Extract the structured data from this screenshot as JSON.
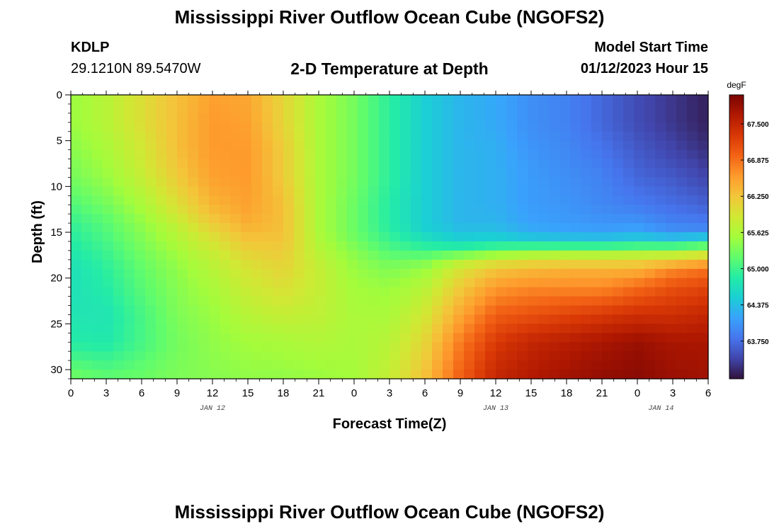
{
  "header": {
    "title": "Mississippi River Outflow Ocean Cube (NGOFS2)",
    "station_id": "KDLP",
    "coordinates": "29.1210N  89.5470W",
    "subtitle": "2-D Temperature at Depth",
    "model_start_label": "Model Start Time",
    "model_start_time": "01/12/2023 Hour 15"
  },
  "footer": {
    "title": "Mississippi River Outflow Ocean Cube (NGOFS2)"
  },
  "chart_data": {
    "type": "heatmap",
    "xlabel": "Forecast Time(Z)",
    "ylabel": "Depth (ft)",
    "x_tick_labels": [
      "0",
      "3",
      "6",
      "9",
      "12",
      "15",
      "18",
      "21",
      "0",
      "3",
      "6",
      "9",
      "12",
      "15",
      "18",
      "21",
      "0",
      "3",
      "6"
    ],
    "x_range_hours": [
      0,
      54
    ],
    "date_labels": [
      {
        "label": "JAN 12",
        "hour": 12
      },
      {
        "label": "JAN 13",
        "hour": 36
      },
      {
        "label": "JAN 14",
        "hour": 50
      }
    ],
    "y_ticks": [
      0,
      5,
      10,
      15,
      20,
      25,
      30
    ],
    "y_range": [
      0,
      31
    ],
    "y_inverted": true,
    "colorbar": {
      "unit": "degF",
      "range": [
        63.1,
        68.0
      ],
      "ticks": [
        "67.500",
        "66.875",
        "66.250",
        "65.625",
        "65.000",
        "64.375",
        "63.750"
      ],
      "tick_values": [
        67.5,
        66.875,
        66.25,
        65.625,
        65.0,
        64.375,
        63.75
      ],
      "colors": [
        "#30123b",
        "#4145ab",
        "#4675ed",
        "#39a2fc",
        "#1bcfd4",
        "#24eca6",
        "#61fc6c",
        "#a4fc3b",
        "#d1e834",
        "#f3c63a",
        "#fe9b2d",
        "#f36315",
        "#d93806",
        "#b11901",
        "#7a0403"
      ]
    },
    "grid_hours": [
      0,
      3,
      6,
      9,
      12,
      15,
      18,
      21,
      24,
      27,
      30,
      33,
      36,
      39,
      42,
      45,
      48,
      51,
      54
    ],
    "grid_depths": [
      0,
      3,
      6,
      9,
      12,
      14,
      15,
      16,
      17,
      18,
      19,
      21,
      24,
      27,
      31
    ],
    "temperature_degF": [
      [
        65.5,
        65.7,
        66.0,
        66.3,
        66.55,
        66.5,
        66.1,
        65.6,
        65.3,
        64.9,
        64.5,
        64.3,
        64.2,
        64.0,
        63.9,
        63.7,
        63.5,
        63.35,
        63.2
      ],
      [
        65.5,
        65.7,
        66.0,
        66.3,
        66.6,
        66.55,
        66.1,
        65.6,
        65.3,
        64.9,
        64.5,
        64.3,
        64.2,
        64.0,
        63.9,
        63.7,
        63.5,
        63.35,
        63.2
      ],
      [
        65.4,
        65.6,
        65.9,
        66.3,
        66.6,
        66.6,
        66.2,
        65.6,
        65.3,
        64.9,
        64.5,
        64.3,
        64.25,
        64.05,
        63.95,
        63.8,
        63.6,
        63.45,
        63.3
      ],
      [
        65.3,
        65.5,
        65.8,
        66.2,
        66.55,
        66.6,
        66.2,
        65.6,
        65.3,
        64.9,
        64.5,
        64.3,
        64.25,
        64.1,
        64.0,
        63.9,
        63.7,
        63.6,
        63.45
      ],
      [
        65.1,
        65.3,
        65.6,
        66.0,
        66.4,
        66.55,
        66.3,
        65.6,
        65.25,
        64.85,
        64.5,
        64.3,
        64.25,
        64.1,
        64.05,
        63.95,
        63.85,
        63.75,
        63.65
      ],
      [
        64.95,
        65.15,
        65.45,
        65.8,
        66.2,
        66.45,
        66.3,
        65.6,
        65.25,
        64.85,
        64.5,
        64.3,
        64.3,
        64.15,
        64.1,
        64.05,
        64.05,
        63.9,
        63.85
      ],
      [
        64.9,
        65.1,
        65.4,
        65.7,
        66.05,
        66.35,
        66.3,
        65.6,
        65.25,
        64.9,
        64.55,
        64.4,
        64.4,
        64.25,
        64.2,
        64.15,
        64.2,
        64.05,
        64.0
      ],
      [
        64.85,
        65.05,
        65.35,
        65.65,
        65.95,
        66.25,
        66.25,
        65.65,
        65.3,
        65.0,
        64.75,
        64.55,
        64.6,
        64.55,
        64.5,
        64.5,
        64.6,
        64.55,
        64.8
      ],
      [
        64.8,
        65.0,
        65.3,
        65.55,
        65.85,
        66.15,
        66.2,
        65.7,
        65.4,
        65.1,
        65.0,
        65.05,
        65.25,
        65.35,
        65.4,
        65.4,
        65.45,
        65.5,
        65.6
      ],
      [
        64.75,
        64.95,
        65.25,
        65.5,
        65.75,
        66.05,
        66.15,
        65.75,
        65.45,
        65.25,
        65.3,
        65.65,
        65.85,
        65.95,
        66.0,
        66.0,
        66.05,
        66.1,
        66.3
      ],
      [
        64.7,
        64.9,
        65.2,
        65.45,
        65.7,
        65.95,
        66.1,
        65.8,
        65.5,
        65.35,
        65.5,
        65.95,
        66.25,
        66.35,
        66.4,
        66.4,
        66.4,
        66.7,
        66.85
      ],
      [
        64.7,
        64.85,
        65.15,
        65.4,
        65.6,
        65.85,
        66.0,
        65.8,
        65.55,
        65.5,
        65.7,
        66.2,
        66.6,
        66.7,
        66.7,
        66.7,
        66.9,
        67.1,
        67.2
      ],
      [
        64.75,
        64.75,
        65.05,
        65.35,
        65.5,
        65.7,
        65.8,
        65.75,
        65.6,
        65.6,
        65.9,
        66.5,
        67.0,
        67.1,
        67.2,
        67.3,
        67.4,
        67.4,
        67.5
      ],
      [
        64.85,
        64.8,
        65.05,
        65.3,
        65.45,
        65.55,
        65.6,
        65.65,
        65.6,
        65.7,
        66.1,
        66.8,
        67.3,
        67.5,
        67.6,
        67.7,
        67.8,
        67.7,
        67.7
      ],
      [
        65.3,
        65.2,
        65.25,
        65.35,
        65.4,
        65.45,
        65.45,
        65.5,
        65.55,
        65.8,
        66.3,
        67.0,
        67.5,
        67.65,
        67.75,
        67.85,
        67.9,
        67.8,
        67.75
      ]
    ]
  }
}
